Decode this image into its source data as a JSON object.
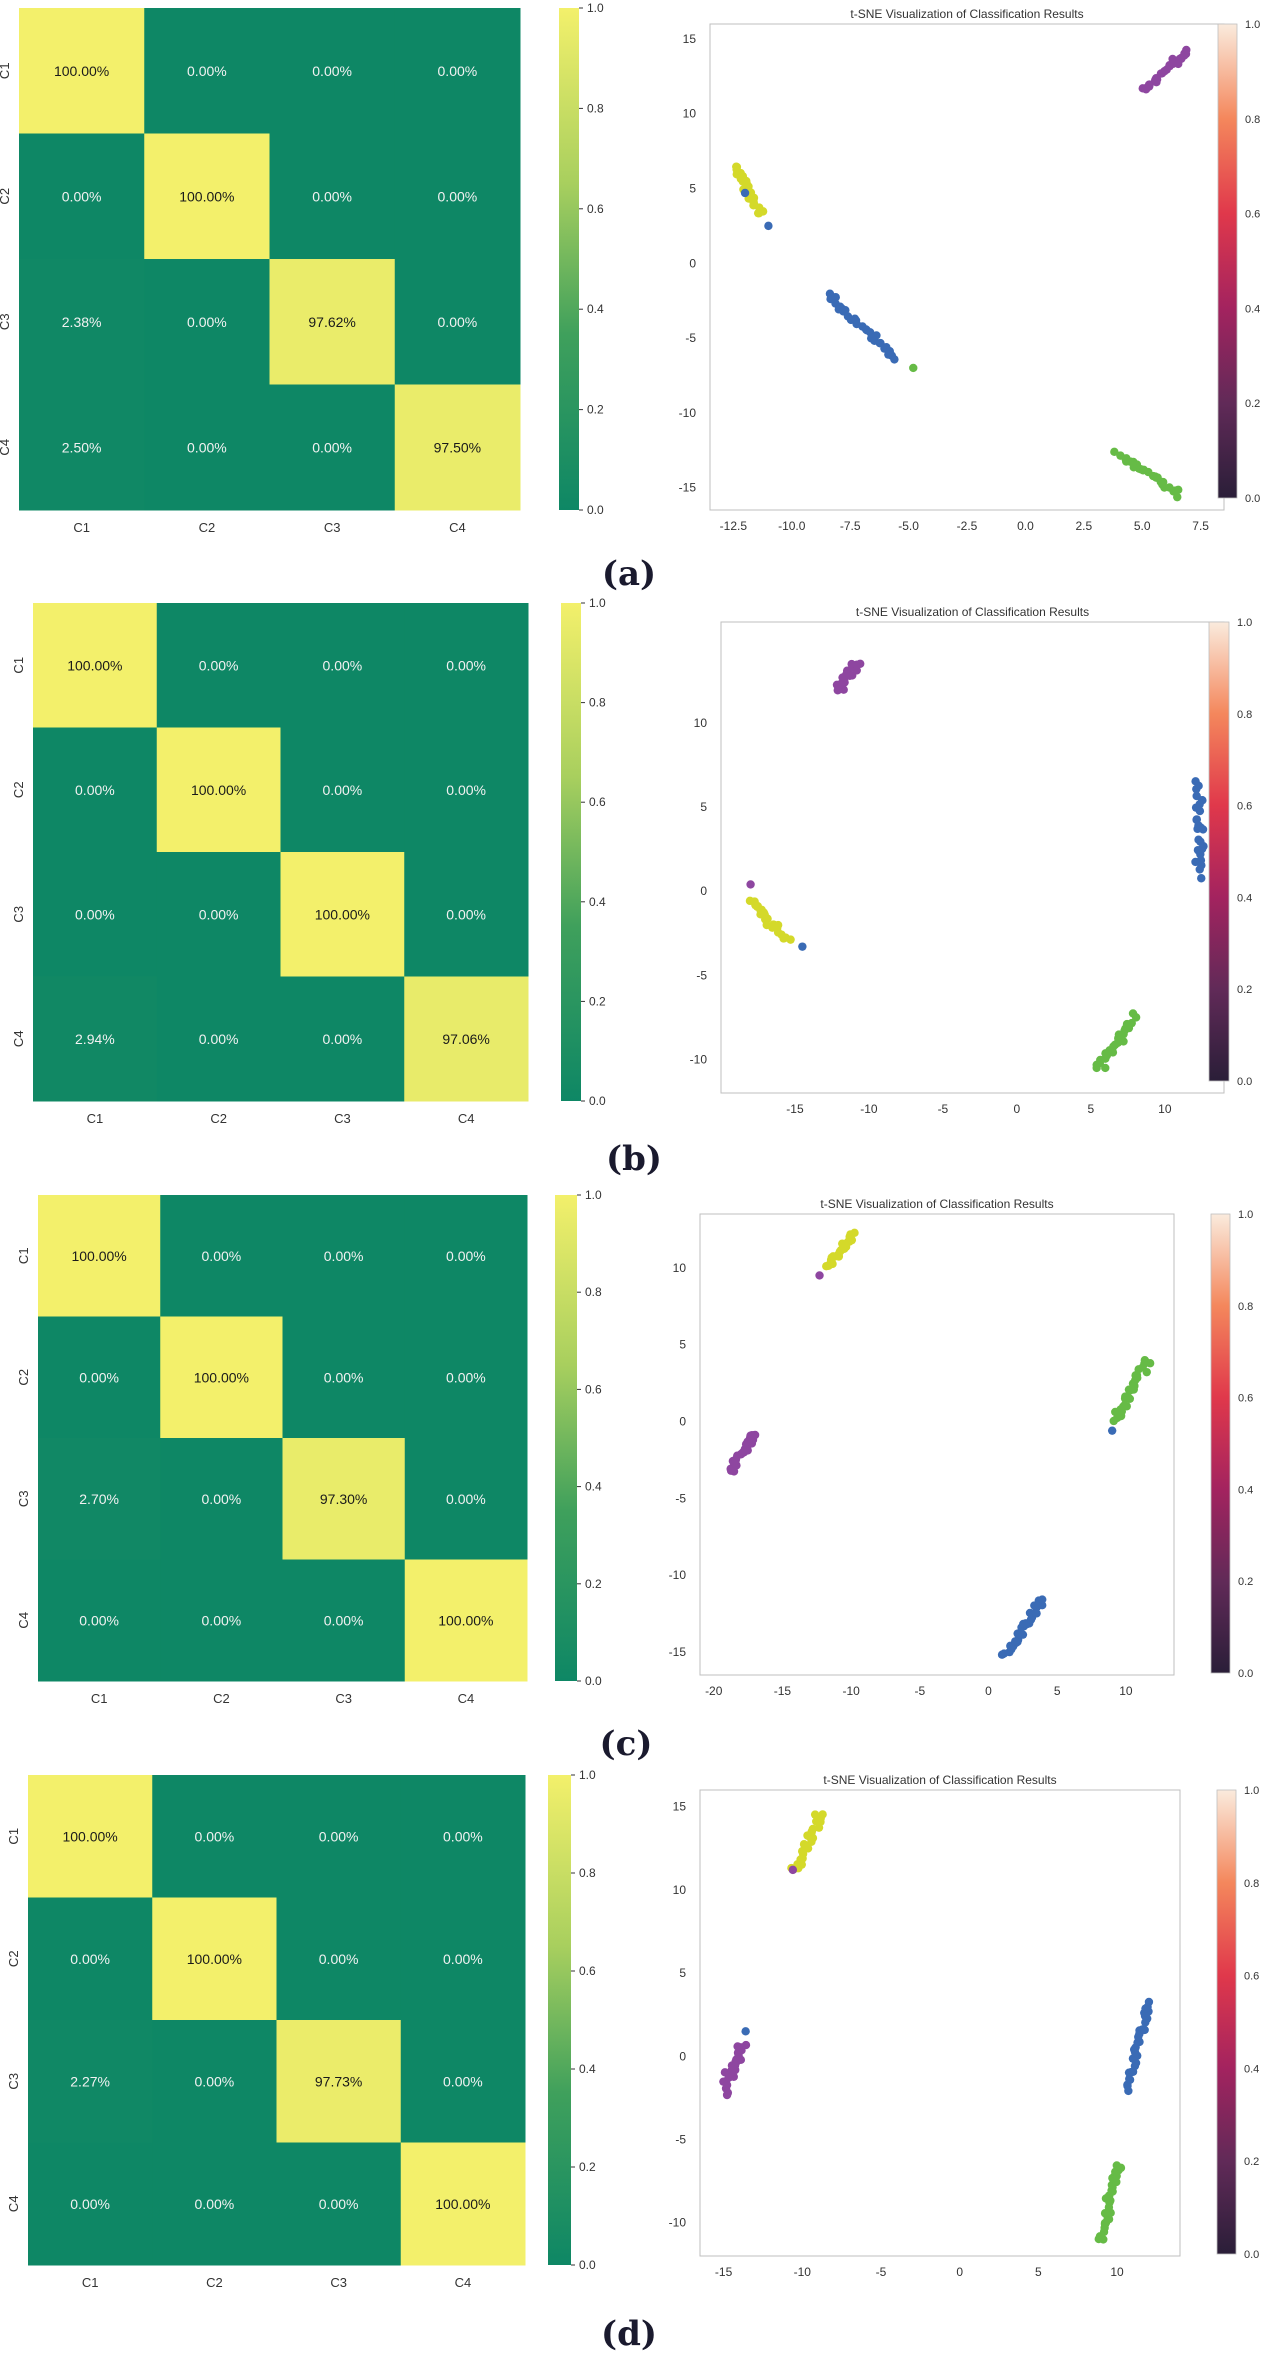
{
  "colors": {
    "heat_low": "#0e8765",
    "heat_high": "#f3f06b",
    "cluster_yellow": "#d4d92a",
    "cluster_blue": "#3a6bb5",
    "cluster_green": "#66bb46",
    "cluster_purple": "#8e46a0"
  },
  "chart_data": [
    {
      "panel": "a",
      "caption": "(a)",
      "heatmap": {
        "type": "heatmap",
        "row_labels": [
          "C1",
          "C2",
          "C3",
          "C4"
        ],
        "col_labels": [
          "C1",
          "C2",
          "C3",
          "C4"
        ],
        "values": [
          [
            1.0,
            0,
            0,
            0
          ],
          [
            0,
            1.0,
            0,
            0
          ],
          [
            0.0238,
            0,
            0.9762,
            0
          ],
          [
            0.025,
            0,
            0,
            0.975
          ]
        ],
        "labels": [
          [
            "100.00%",
            "0.00%",
            "0.00%",
            "0.00%"
          ],
          [
            "0.00%",
            "100.00%",
            "0.00%",
            "0.00%"
          ],
          [
            "2.38%",
            "0.00%",
            "97.62%",
            "0.00%"
          ],
          [
            "2.50%",
            "0.00%",
            "0.00%",
            "97.50%"
          ]
        ],
        "colorbar_ticks": [
          "0.0",
          "0.2",
          "0.4",
          "0.6",
          "0.8",
          "1.0"
        ]
      },
      "tsne": {
        "type": "scatter",
        "title": "t-SNE Visualization of Classification Results",
        "xlim": [
          -13.5,
          8.5
        ],
        "ylim": [
          -16.5,
          16
        ],
        "xticks": [
          -12.5,
          -10,
          -7.5,
          -5,
          -2.5,
          0,
          2.5,
          5,
          7.5
        ],
        "xtick_labels": [
          "-12.5",
          "-10.0",
          "-7.5",
          "-5.0",
          "-2.5",
          "0.0",
          "2.5",
          "5.0",
          "7.5"
        ],
        "yticks": [
          -15,
          -10,
          -5,
          0,
          5,
          10,
          15
        ],
        "ytick_labels": [
          "-15",
          "-10",
          "-5",
          "0",
          "5",
          "10",
          "15"
        ],
        "colorbar_ticks": [
          "0.0",
          "0.2",
          "0.4",
          "0.6",
          "0.8",
          "1.0"
        ],
        "clusters": [
          {
            "color": "cluster_purple",
            "from": [
              5.0,
              11.5
            ],
            "to": [
              7.0,
              14.2
            ],
            "n": 28,
            "spread": 0.35
          },
          {
            "color": "cluster_yellow",
            "from": [
              -12.4,
              6.5
            ],
            "to": [
              -11.4,
              3.3
            ],
            "n": 26,
            "spread": 0.3
          },
          {
            "color": "cluster_blue",
            "from": [
              -8.5,
              -2.0
            ],
            "to": [
              -5.6,
              -6.3
            ],
            "n": 30,
            "spread": 0.25
          },
          {
            "color": "cluster_green",
            "from": [
              4.0,
              -12.8
            ],
            "to": [
              6.5,
              -15.4
            ],
            "n": 28,
            "spread": 0.3
          }
        ],
        "outliers": [
          {
            "x": -12.0,
            "y": 4.7,
            "color": "cluster_blue"
          },
          {
            "x": -11.0,
            "y": 2.5,
            "color": "cluster_blue"
          },
          {
            "x": -4.8,
            "y": -7.0,
            "color": "cluster_green"
          }
        ]
      }
    },
    {
      "panel": "b",
      "caption": "(b)",
      "heatmap": {
        "type": "heatmap",
        "row_labels": [
          "C1",
          "C2",
          "C3",
          "C4"
        ],
        "col_labels": [
          "C1",
          "C2",
          "C3",
          "C4"
        ],
        "values": [
          [
            1.0,
            0,
            0,
            0
          ],
          [
            0,
            1.0,
            0,
            0
          ],
          [
            0,
            0,
            1.0,
            0
          ],
          [
            0.0294,
            0,
            0,
            0.9706
          ]
        ],
        "labels": [
          [
            "100.00%",
            "0.00%",
            "0.00%",
            "0.00%"
          ],
          [
            "0.00%",
            "100.00%",
            "0.00%",
            "0.00%"
          ],
          [
            "0.00%",
            "0.00%",
            "100.00%",
            "0.00%"
          ],
          [
            "2.94%",
            "0.00%",
            "0.00%",
            "97.06%"
          ]
        ],
        "colorbar_ticks": [
          "0.0",
          "0.2",
          "0.4",
          "0.6",
          "0.8",
          "1.0"
        ]
      },
      "tsne": {
        "type": "scatter",
        "title": "t-SNE Visualization of Classification Results",
        "xlim": [
          -20,
          14
        ],
        "ylim": [
          -12,
          16
        ],
        "xticks": [
          -15,
          -10,
          -5,
          0,
          5,
          10
        ],
        "xtick_labels": [
          "-15",
          "-10",
          "-5",
          "0",
          "5",
          "10"
        ],
        "yticks": [
          -10,
          -5,
          0,
          5,
          10
        ],
        "ytick_labels": [
          "-10",
          "-5",
          "0",
          "5",
          "10"
        ],
        "colorbar_ticks": [
          "0.0",
          "0.2",
          "0.4",
          "0.6",
          "0.8",
          "1.0"
        ],
        "clusters": [
          {
            "color": "cluster_purple",
            "from": [
              -12.2,
              12.0
            ],
            "to": [
              -10.8,
              13.6
            ],
            "n": 24,
            "spread": 0.45
          },
          {
            "color": "cluster_blue",
            "from": [
              12.2,
              6.5
            ],
            "to": [
              12.4,
              1.0
            ],
            "n": 26,
            "spread": 0.4
          },
          {
            "color": "cluster_yellow",
            "from": [
              -18.0,
              -0.5
            ],
            "to": [
              -15.5,
              -3.0
            ],
            "n": 26,
            "spread": 0.35
          },
          {
            "color": "cluster_green",
            "from": [
              5.5,
              -10.5
            ],
            "to": [
              8.0,
              -7.5
            ],
            "n": 28,
            "spread": 0.4
          }
        ],
        "outliers": [
          {
            "x": -18.0,
            "y": 0.4,
            "color": "cluster_purple"
          },
          {
            "x": -14.5,
            "y": -3.3,
            "color": "cluster_blue"
          }
        ]
      }
    },
    {
      "panel": "c",
      "caption": "(c)",
      "heatmap": {
        "type": "heatmap",
        "row_labels": [
          "C1",
          "C2",
          "C3",
          "C4"
        ],
        "col_labels": [
          "C1",
          "C2",
          "C3",
          "C4"
        ],
        "values": [
          [
            1.0,
            0,
            0,
            0
          ],
          [
            0,
            1.0,
            0,
            0
          ],
          [
            0.027,
            0,
            0.973,
            0
          ],
          [
            0,
            0,
            0,
            1.0
          ]
        ],
        "labels": [
          [
            "100.00%",
            "0.00%",
            "0.00%",
            "0.00%"
          ],
          [
            "0.00%",
            "100.00%",
            "0.00%",
            "0.00%"
          ],
          [
            "2.70%",
            "0.00%",
            "97.30%",
            "0.00%"
          ],
          [
            "0.00%",
            "0.00%",
            "0.00%",
            "100.00%"
          ]
        ],
        "colorbar_ticks": [
          "0.0",
          "0.2",
          "0.4",
          "0.6",
          "0.8",
          "1.0"
        ]
      },
      "tsne": {
        "type": "scatter",
        "title": "t-SNE Visualization of Classification Results",
        "xlim": [
          -21,
          13.5
        ],
        "ylim": [
          -16.5,
          13.5
        ],
        "xticks": [
          -20,
          -15,
          -10,
          -5,
          0,
          5,
          10
        ],
        "xtick_labels": [
          "-20",
          "-15",
          "-10",
          "-5",
          "0",
          "5",
          "10"
        ],
        "yticks": [
          -15,
          -10,
          -5,
          0,
          5,
          10
        ],
        "ytick_labels": [
          "-15",
          "-10",
          "-5",
          "0",
          "5",
          "10"
        ],
        "colorbar_ticks": [
          "0.0",
          "0.2",
          "0.4",
          "0.6",
          "0.8",
          "1.0"
        ],
        "clusters": [
          {
            "color": "cluster_yellow",
            "from": [
              -11.8,
              10.0
            ],
            "to": [
              -9.8,
              12.2
            ],
            "n": 24,
            "spread": 0.35
          },
          {
            "color": "cluster_green",
            "from": [
              9.2,
              0.0
            ],
            "to": [
              11.6,
              4.0
            ],
            "n": 30,
            "spread": 0.45
          },
          {
            "color": "cluster_purple",
            "from": [
              -18.8,
              -3.2
            ],
            "to": [
              -17.0,
              -0.8
            ],
            "n": 26,
            "spread": 0.35
          },
          {
            "color": "cluster_blue",
            "from": [
              1.2,
              -15.2
            ],
            "to": [
              4.0,
              -11.6
            ],
            "n": 30,
            "spread": 0.35
          }
        ],
        "outliers": [
          {
            "x": -12.3,
            "y": 9.5,
            "color": "cluster_purple"
          },
          {
            "x": 9.0,
            "y": -0.6,
            "color": "cluster_blue"
          }
        ]
      }
    },
    {
      "panel": "d",
      "caption": "(d)",
      "heatmap": {
        "type": "heatmap",
        "row_labels": [
          "C1",
          "C2",
          "C3",
          "C4"
        ],
        "col_labels": [
          "C1",
          "C2",
          "C3",
          "C4"
        ],
        "values": [
          [
            1.0,
            0,
            0,
            0
          ],
          [
            0,
            1.0,
            0,
            0
          ],
          [
            0.0227,
            0,
            0.9773,
            0
          ],
          [
            0,
            0,
            0,
            1.0
          ]
        ],
        "labels": [
          [
            "100.00%",
            "0.00%",
            "0.00%",
            "0.00%"
          ],
          [
            "0.00%",
            "100.00%",
            "0.00%",
            "0.00%"
          ],
          [
            "2.27%",
            "0.00%",
            "97.73%",
            "0.00%"
          ],
          [
            "0.00%",
            "0.00%",
            "0.00%",
            "100.00%"
          ]
        ],
        "colorbar_ticks": [
          "0.0",
          "0.2",
          "0.4",
          "0.6",
          "0.8",
          "1.0"
        ]
      },
      "tsne": {
        "type": "scatter",
        "title": "t-SNE Visualization of Classification Results",
        "xlim": [
          -16.5,
          14
        ],
        "ylim": [
          -12,
          16
        ],
        "xticks": [
          -15,
          -10,
          -5,
          0,
          5,
          10
        ],
        "xtick_labels": [
          "-15",
          "-10",
          "-5",
          "0",
          "5",
          "10"
        ],
        "yticks": [
          -10,
          -5,
          0,
          5,
          10,
          15
        ],
        "ytick_labels": [
          "-10",
          "-5",
          "0",
          "5",
          "10",
          "15"
        ],
        "colorbar_ticks": [
          "0.0",
          "0.2",
          "0.4",
          "0.6",
          "0.8",
          "1.0"
        ],
        "clusters": [
          {
            "color": "cluster_yellow",
            "from": [
              -10.5,
              11.0
            ],
            "to": [
              -8.8,
              14.5
            ],
            "n": 30,
            "spread": 0.4
          },
          {
            "color": "cluster_purple",
            "from": [
              -15.0,
              -2.0
            ],
            "to": [
              -13.8,
              0.5
            ],
            "n": 28,
            "spread": 0.45
          },
          {
            "color": "cluster_blue",
            "from": [
              10.6,
              -2.0
            ],
            "to": [
              12.0,
              3.2
            ],
            "n": 30,
            "spread": 0.3
          },
          {
            "color": "cluster_green",
            "from": [
              9.0,
              -11.0
            ],
            "to": [
              10.0,
              -6.5
            ],
            "n": 30,
            "spread": 0.4
          }
        ],
        "outliers": [
          {
            "x": -10.6,
            "y": 11.2,
            "color": "cluster_purple"
          },
          {
            "x": -13.6,
            "y": 1.5,
            "color": "cluster_blue"
          }
        ]
      }
    }
  ]
}
